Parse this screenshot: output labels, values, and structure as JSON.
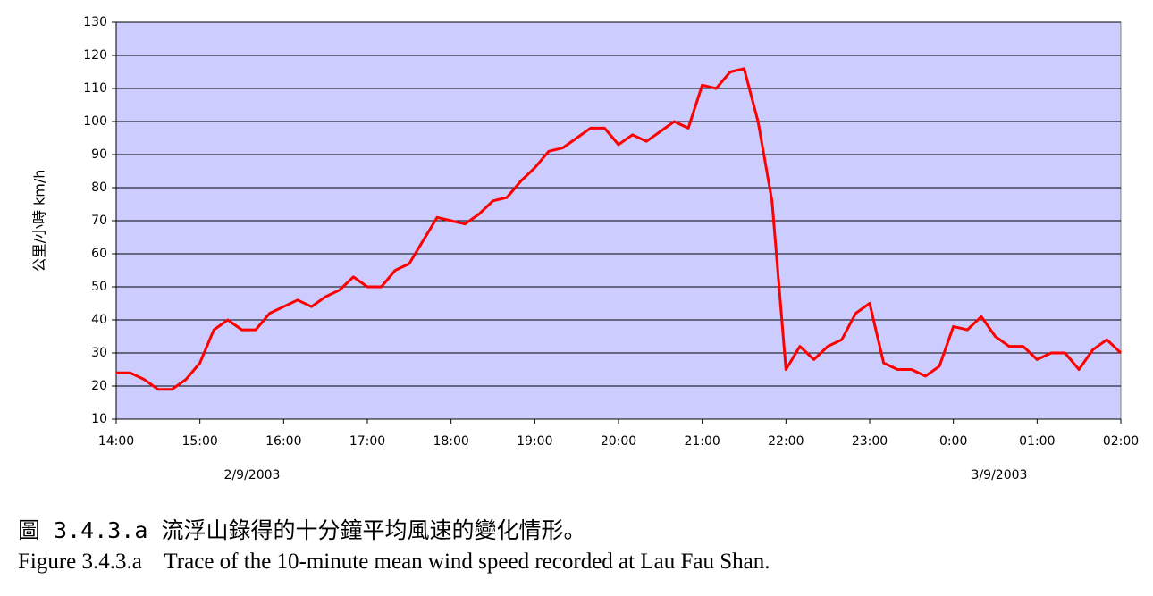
{
  "chart_data": {
    "type": "line",
    "ylabel": "公里/小時 km/h",
    "categories": [
      "14:00",
      null,
      null,
      null,
      null,
      null,
      "15:00",
      null,
      null,
      null,
      null,
      null,
      "16:00",
      null,
      null,
      null,
      null,
      null,
      "17:00",
      null,
      null,
      null,
      null,
      null,
      "18:00",
      null,
      null,
      null,
      null,
      null,
      "19:00",
      null,
      null,
      null,
      null,
      null,
      "20:00",
      null,
      null,
      null,
      null,
      null,
      "21:00",
      null,
      null,
      null,
      null,
      null,
      "22:00",
      null,
      null,
      null,
      null,
      null,
      "23:00",
      null,
      null,
      null,
      null,
      null,
      "0:00",
      null,
      null,
      null,
      null,
      null,
      "01:00",
      null,
      null,
      null,
      null,
      null,
      "02:00"
    ],
    "series": [
      {
        "color": "#ff0000",
        "values": [
          24,
          24,
          22,
          19,
          19,
          22,
          27,
          37,
          40,
          37,
          37,
          42,
          44,
          46,
          44,
          47,
          49,
          53,
          50,
          50,
          55,
          57,
          64,
          71,
          70,
          69,
          72,
          76,
          77,
          82,
          86,
          91,
          92,
          95,
          98,
          98,
          93,
          96,
          94,
          97,
          100,
          98,
          111,
          110,
          115,
          116,
          100,
          76,
          25,
          32,
          28,
          32,
          34,
          42,
          45,
          27,
          25,
          25,
          23,
          26,
          38,
          37,
          41,
          35,
          32,
          32,
          28,
          30,
          30,
          25,
          31,
          34,
          30
        ]
      }
    ],
    "ylim": [
      10,
      130
    ],
    "yticks": [
      10,
      20,
      30,
      40,
      50,
      60,
      70,
      80,
      90,
      100,
      110,
      120,
      130
    ],
    "grid": true,
    "date_labels": [
      "2/9/2003",
      "3/9/2003"
    ]
  },
  "caption": {
    "chinese": "圖 3.4.3.a 流浮山錄得的十分鐘平均風速的變化情形。",
    "english": "Figure 3.4.3.a    Trace of the 10-minute mean wind speed recorded at Lau Fau Shan."
  }
}
